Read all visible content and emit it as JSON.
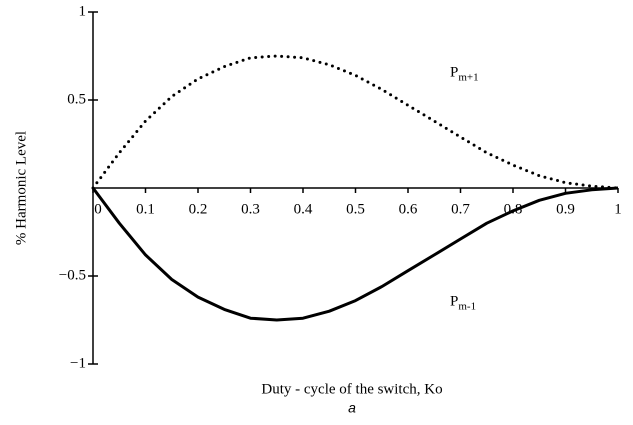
{
  "chart_data": {
    "type": "line",
    "x_label": "Duty - cycle of the switch, Ko",
    "y_label": "% Harmonic Level",
    "caption": "a",
    "x": [
      0,
      0.05,
      0.1,
      0.15,
      0.2,
      0.25,
      0.3,
      0.35,
      0.4,
      0.45,
      0.5,
      0.55,
      0.6,
      0.65,
      0.7,
      0.75,
      0.8,
      0.85,
      0.9,
      0.95,
      1
    ],
    "series": [
      {
        "style": "dotted",
        "color": "#000000",
        "values": [
          0,
          0.2,
          0.38,
          0.52,
          0.62,
          0.69,
          0.74,
          0.75,
          0.74,
          0.7,
          0.64,
          0.56,
          0.47,
          0.38,
          0.29,
          0.2,
          0.13,
          0.07,
          0.03,
          0.01,
          0
        ]
      },
      {
        "style": "solid",
        "color": "#000000",
        "values": [
          0,
          -0.2,
          -0.38,
          -0.52,
          -0.62,
          -0.69,
          -0.74,
          -0.75,
          -0.74,
          -0.7,
          -0.64,
          -0.56,
          -0.47,
          -0.38,
          -0.29,
          -0.2,
          -0.13,
          -0.07,
          -0.03,
          -0.01,
          0
        ]
      }
    ],
    "annotations": [
      {
        "text": "P",
        "sub": "m+1",
        "x": 0.68,
        "y": 0.65
      },
      {
        "text": "P",
        "sub": "m-1",
        "x": 0.68,
        "y": -0.65
      }
    ],
    "xlim": [
      0,
      1
    ],
    "ylim": [
      -1,
      1
    ],
    "xticks": [
      0,
      0.1,
      0.2,
      0.3,
      0.4,
      0.5,
      0.6,
      0.7,
      0.8,
      0.9,
      1
    ],
    "yticks": [
      {
        "value": -1,
        "label": "−1"
      },
      {
        "value": -0.5,
        "label": "−0.5"
      },
      0.5,
      1
    ]
  }
}
